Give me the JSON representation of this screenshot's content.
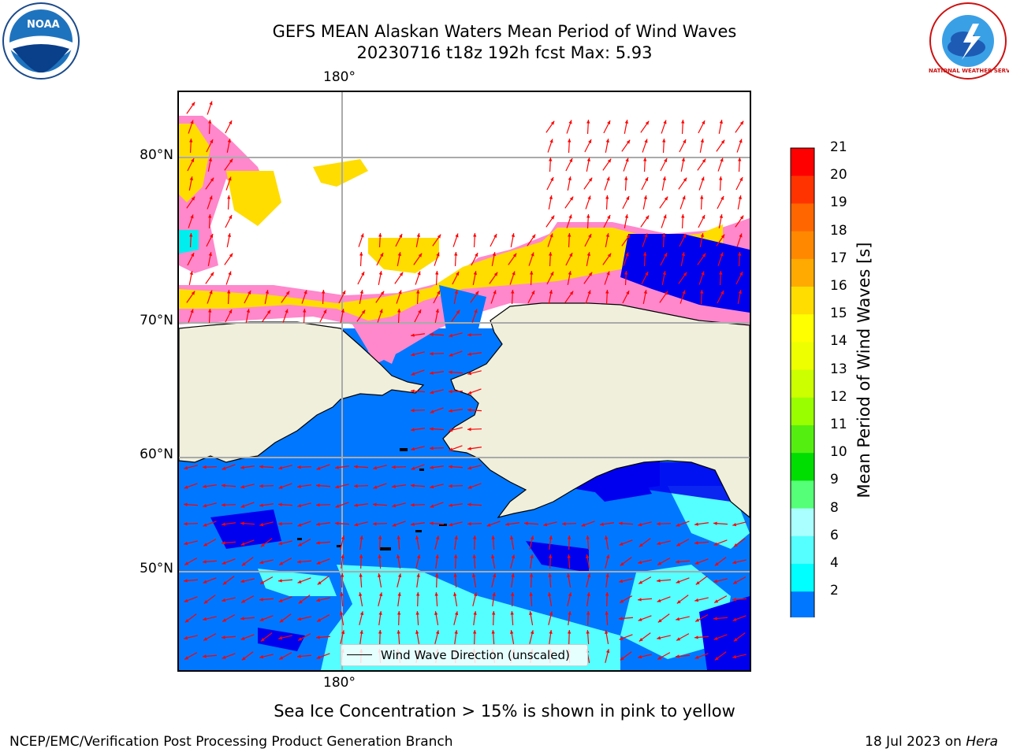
{
  "header": {
    "title_line1": "GEFS MEAN Alaskan Waters Mean Period of Wind Waves",
    "title_line2": "20230716 t18z 192h fcst   Max: 5.93"
  },
  "logos": {
    "left": "NOAA",
    "right": "NATIONAL WEATHER SERVICE"
  },
  "map": {
    "lon_top": "180°",
    "lon_bottom": "180°",
    "lat_labels": [
      "80°N",
      "70°N",
      "60°N",
      "50°N"
    ],
    "legend_label": "Wind Wave Direction (unscaled)",
    "arrow_color": "#ff0000",
    "land_color": "#efefdc"
  },
  "colorbar": {
    "title": "Mean Period of Wind Waves [s]",
    "ticks": [
      "21",
      "20",
      "19",
      "18",
      "17",
      "16",
      "15",
      "14",
      "13",
      "12",
      "11",
      "10",
      "9",
      "8",
      "6",
      "4",
      "2"
    ],
    "colors": [
      "#ff0000",
      "#ff3300",
      "#ff6600",
      "#ff8800",
      "#ffaa00",
      "#ffdd00",
      "#ffff00",
      "#eeff00",
      "#ccff00",
      "#99ff00",
      "#55ee11",
      "#00dd00",
      "#55ff77",
      "#aaffff",
      "#55ffff",
      "#00ffff",
      "#00eeee",
      "#0077ff"
    ],
    "extend_color": "#0000ee"
  },
  "notes": {
    "ice": "Sea Ice Concentration > 15% is shown in pink to yellow"
  },
  "footer": {
    "left": "NCEP/EMC/Verification Post Processing Product Generation Branch",
    "right_date": "18 Jul 2023 on ",
    "right_host": "Hera"
  }
}
